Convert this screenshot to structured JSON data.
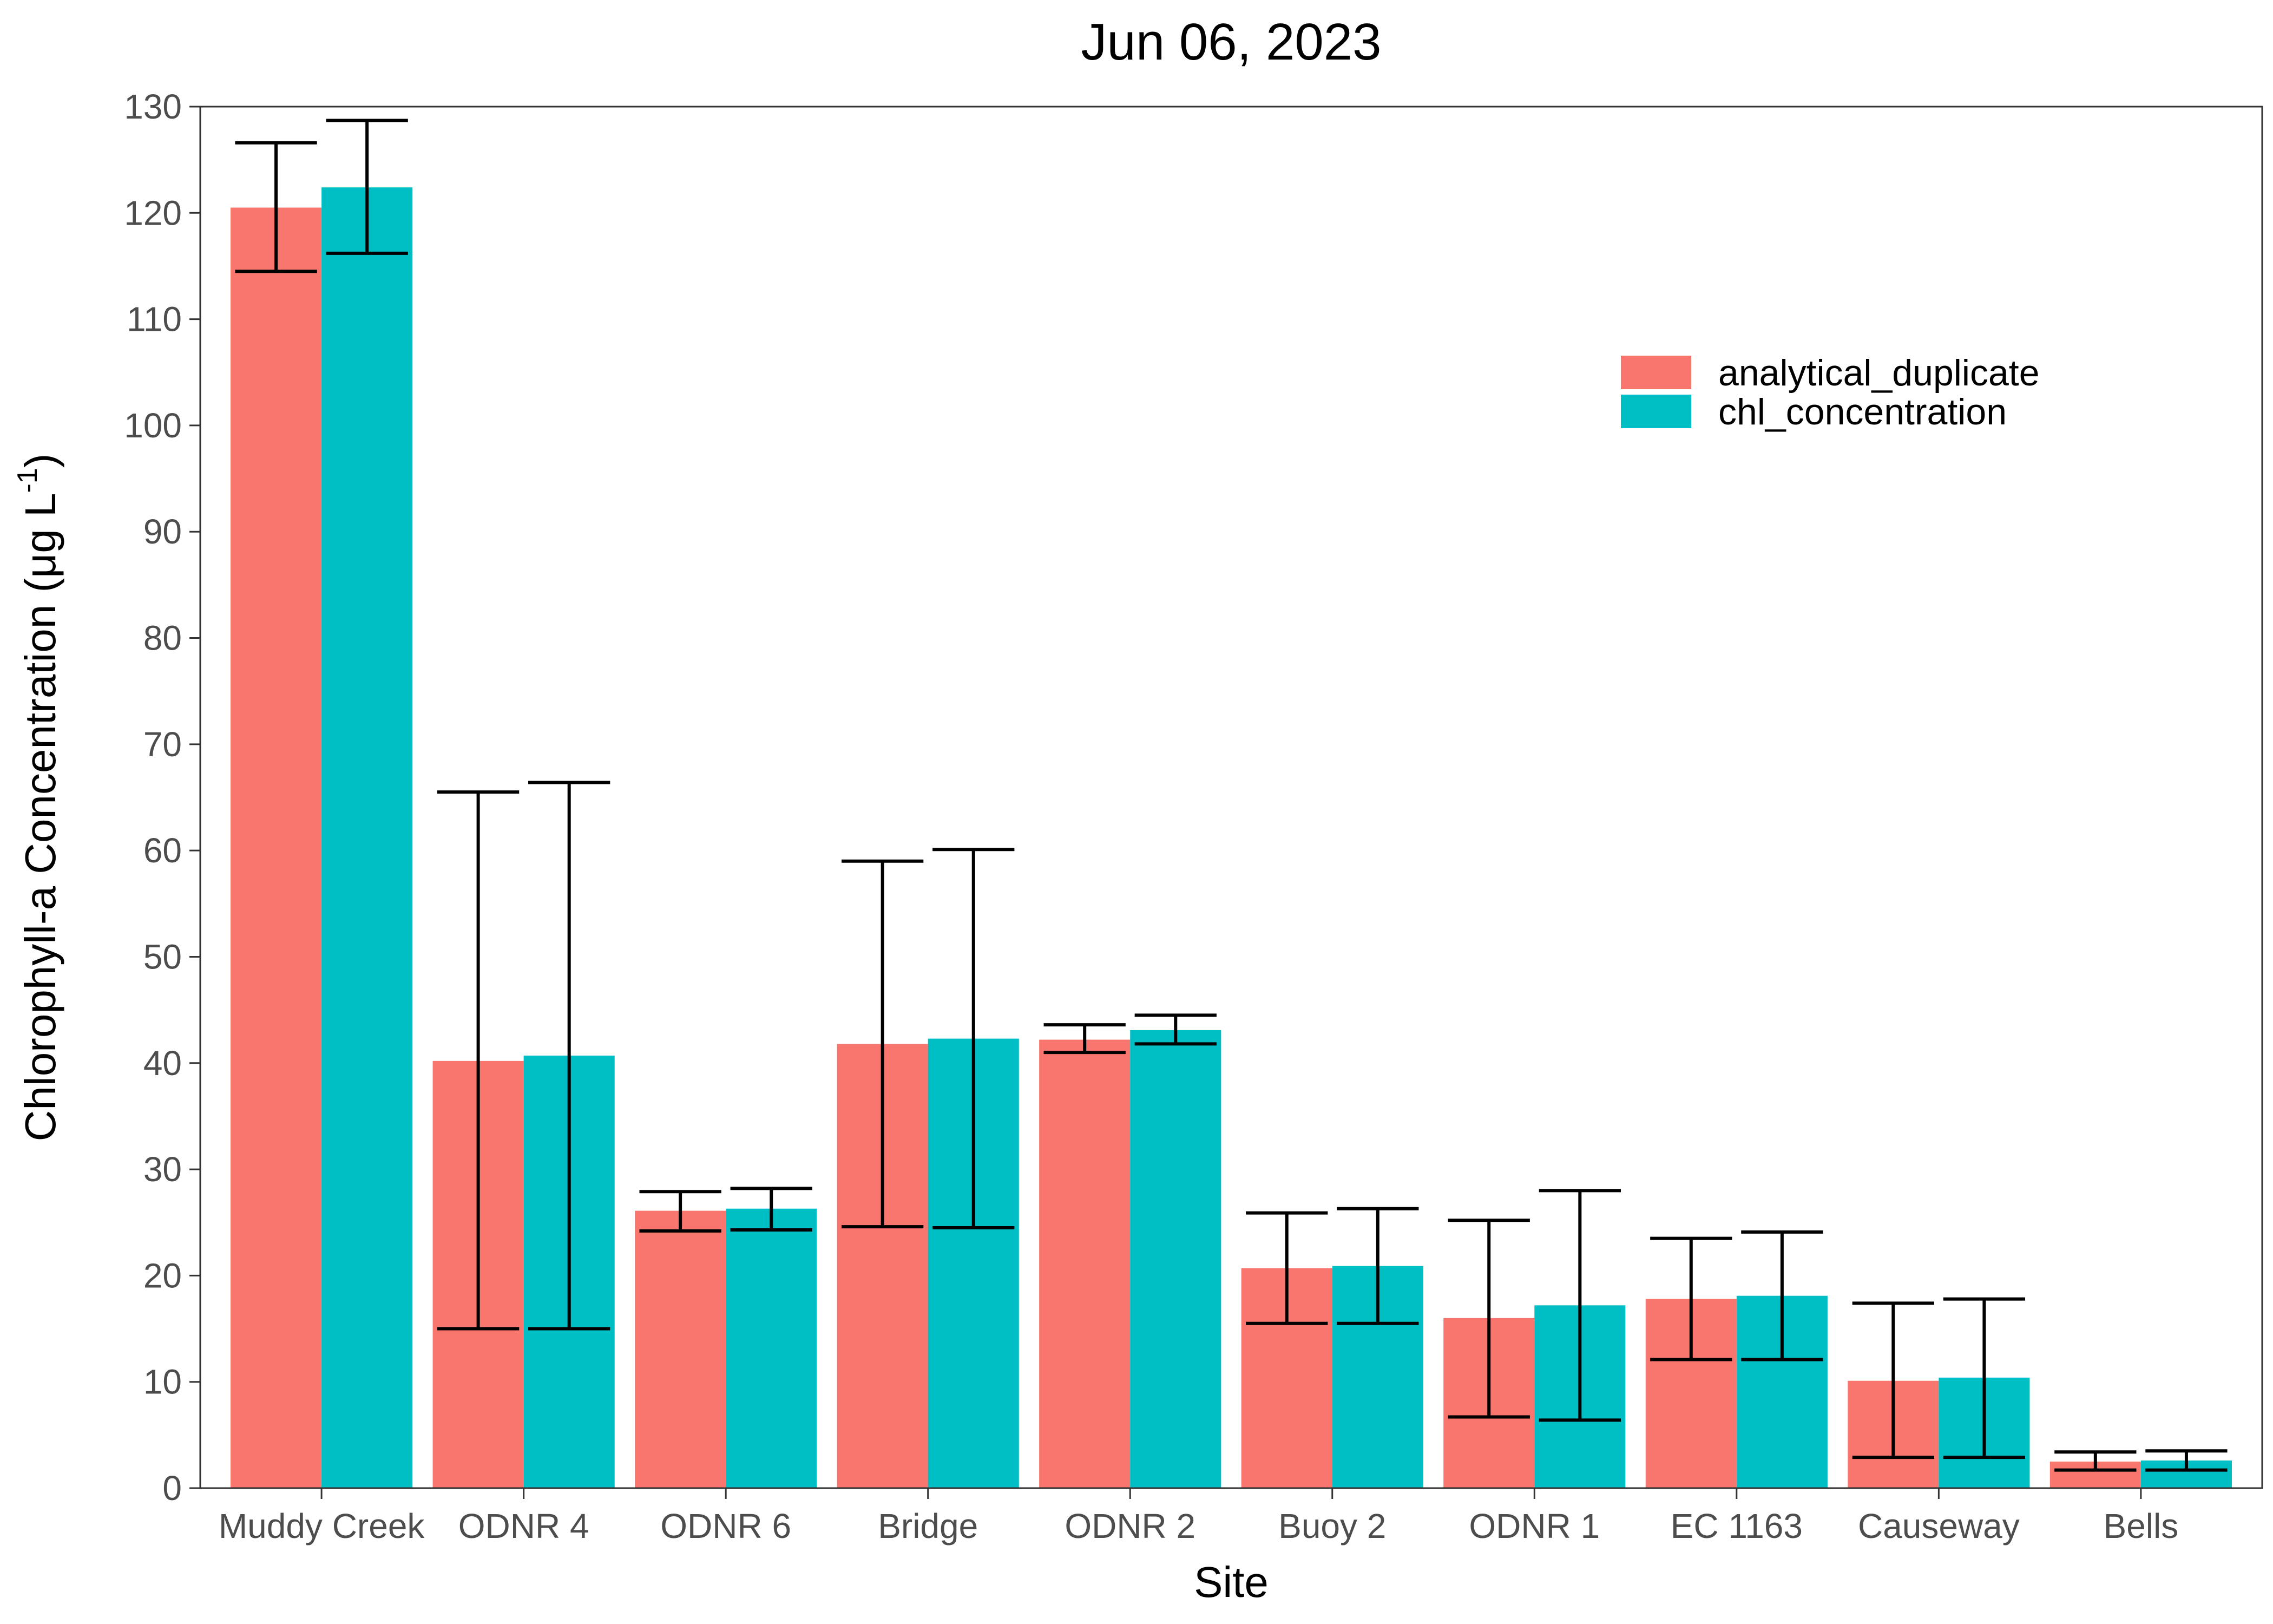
{
  "chart_data": {
    "type": "bar",
    "title": "Jun 06, 2023",
    "xlabel": "Site",
    "ylabel": "Chlorophyll-a Concentration (μg L",
    "ylabel_sup": "-1",
    "ylabel_close": ")",
    "ylim": [
      0,
      130
    ],
    "yticks": [
      0,
      10,
      20,
      30,
      40,
      50,
      60,
      70,
      80,
      90,
      100,
      110,
      120,
      130
    ],
    "grid": false,
    "legend_position": "top-right",
    "categories": [
      "Muddy Creek",
      "ODNR 4",
      "ODNR 6",
      "Bridge",
      "ODNR 2",
      "Buoy 2",
      "ODNR 1",
      "EC 1163",
      "Causeway",
      "Bells"
    ],
    "series": [
      {
        "name": "analytical_duplicate",
        "color": "#F8766D",
        "values": [
          120.5,
          40.2,
          26.1,
          41.8,
          42.2,
          20.7,
          16.0,
          17.8,
          10.1,
          2.5
        ],
        "err_low": [
          114.5,
          15.0,
          24.2,
          24.6,
          41.0,
          15.5,
          6.7,
          12.1,
          2.9,
          1.7
        ],
        "err_high": [
          126.6,
          65.5,
          27.9,
          59.0,
          43.6,
          25.9,
          25.2,
          23.5,
          17.4,
          3.4
        ]
      },
      {
        "name": "chl_concentration",
        "color": "#00BFC4",
        "values": [
          122.4,
          40.7,
          26.3,
          42.3,
          43.1,
          20.9,
          17.2,
          18.1,
          10.4,
          2.6
        ],
        "err_low": [
          116.2,
          15.0,
          24.3,
          24.5,
          41.8,
          15.5,
          6.4,
          12.1,
          2.9,
          1.7
        ],
        "err_high": [
          128.7,
          66.4,
          28.2,
          60.1,
          44.5,
          26.3,
          28.0,
          24.1,
          17.8,
          3.5
        ]
      }
    ]
  }
}
